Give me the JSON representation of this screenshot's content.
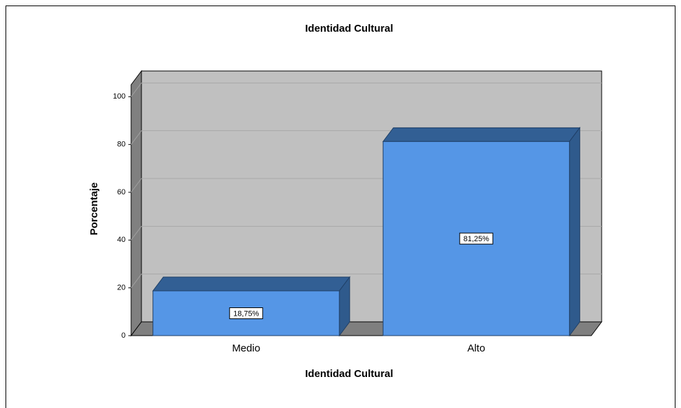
{
  "chart_data": {
    "type": "bar3d",
    "title": "Identidad Cultural",
    "x_label": "Identidad Cultural",
    "y_label": "Porcentaje",
    "categories": [
      "Medio",
      "Alto"
    ],
    "values": [
      18.75,
      81.25
    ],
    "value_labels": [
      "18,75%",
      "81,25%"
    ],
    "color": "#5596e6",
    "ylim": [
      0,
      105
    ],
    "yticks": [
      0,
      20,
      40,
      60,
      80,
      100
    ],
    "grid": true
  }
}
